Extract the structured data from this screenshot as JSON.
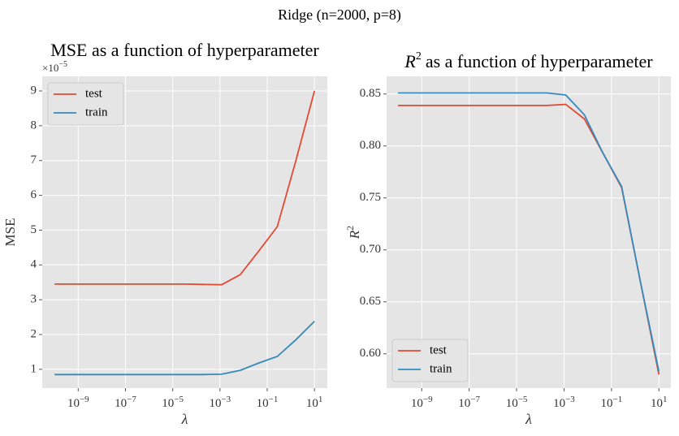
{
  "suptitle": "Ridge (n=2000, p=8)",
  "chart_data": [
    {
      "type": "line",
      "title": "MSE as a function of hyperparameter",
      "xlabel": "λ",
      "ylabel": "MSE",
      "offset_label": "×10",
      "offset_exponent": "−5",
      "xscale": "log",
      "grid": true,
      "legend": "upper left",
      "x": [
        1e-10,
        6.11e-10,
        3.73e-09,
        2.28e-08,
        1.39e-07,
        8.48e-07,
        5.18e-06,
        3.16e-05,
        0.000193,
        0.00118,
        0.0072,
        0.0439,
        0.268,
        1.64,
        10
      ],
      "series": [
        {
          "name": "test",
          "color": "#E24A33",
          "values": [
            3.45,
            3.45,
            3.45,
            3.45,
            3.45,
            3.45,
            3.45,
            3.45,
            3.44,
            3.43,
            3.72,
            4.4,
            5.1,
            7.0,
            9.0
          ]
        },
        {
          "name": "train",
          "color": "#348ABD",
          "values": [
            0.85,
            0.85,
            0.85,
            0.85,
            0.85,
            0.85,
            0.85,
            0.85,
            0.85,
            0.86,
            0.97,
            1.18,
            1.37,
            1.85,
            2.38
          ]
        }
      ],
      "xlim": [
        3e-11,
        35
      ],
      "ylim": [
        0.46,
        9.42
      ],
      "xticks": [
        {
          "value": 1e-09,
          "label": "10",
          "exponent": "−9"
        },
        {
          "value": 1e-07,
          "label": "10",
          "exponent": "−7"
        },
        {
          "value": 1e-05,
          "label": "10",
          "exponent": "−5"
        },
        {
          "value": 0.001,
          "label": "10",
          "exponent": "−3"
        },
        {
          "value": 0.1,
          "label": "10",
          "exponent": "−1"
        },
        {
          "value": 10,
          "label": "10",
          "exponent": "1"
        }
      ],
      "yticks": [
        1,
        2,
        3,
        4,
        5,
        6,
        7,
        8,
        9
      ]
    },
    {
      "type": "line",
      "title": "as a function of hyperparameter",
      "title_symbol": "R",
      "title_exponent": "2",
      "xlabel": "λ",
      "ylabel": "R",
      "ylabel_exponent": "2",
      "xscale": "log",
      "grid": true,
      "legend": "lower left",
      "x": [
        1e-10,
        6.11e-10,
        3.73e-09,
        2.28e-08,
        1.39e-07,
        8.48e-07,
        5.18e-06,
        3.16e-05,
        0.000193,
        0.00118,
        0.0072,
        0.0439,
        0.268,
        1.64,
        10
      ],
      "series": [
        {
          "name": "test",
          "color": "#E24A33",
          "values": [
            0.839,
            0.839,
            0.839,
            0.839,
            0.839,
            0.839,
            0.839,
            0.839,
            0.839,
            0.84,
            0.826,
            0.793,
            0.76,
            0.67,
            0.58
          ]
        },
        {
          "name": "train",
          "color": "#348ABD",
          "values": [
            0.851,
            0.851,
            0.851,
            0.851,
            0.851,
            0.851,
            0.851,
            0.851,
            0.851,
            0.849,
            0.83,
            0.793,
            0.761,
            0.67,
            0.583
          ]
        }
      ],
      "xlim": [
        3.3e-11,
        32
      ],
      "ylim": [
        0.567,
        0.867
      ],
      "xticks": [
        {
          "value": 1e-09,
          "label": "10",
          "exponent": "−9"
        },
        {
          "value": 1e-07,
          "label": "10",
          "exponent": "−7"
        },
        {
          "value": 1e-05,
          "label": "10",
          "exponent": "−5"
        },
        {
          "value": 0.001,
          "label": "10",
          "exponent": "−3"
        },
        {
          "value": 0.1,
          "label": "10",
          "exponent": "−1"
        },
        {
          "value": 10,
          "label": "10",
          "exponent": "1"
        }
      ],
      "yticks": [
        {
          "value": 0.6,
          "label": "0.60"
        },
        {
          "value": 0.65,
          "label": "0.65"
        },
        {
          "value": 0.7,
          "label": "0.70"
        },
        {
          "value": 0.75,
          "label": "0.75"
        },
        {
          "value": 0.8,
          "label": "0.80"
        },
        {
          "value": 0.85,
          "label": "0.85"
        }
      ]
    }
  ]
}
